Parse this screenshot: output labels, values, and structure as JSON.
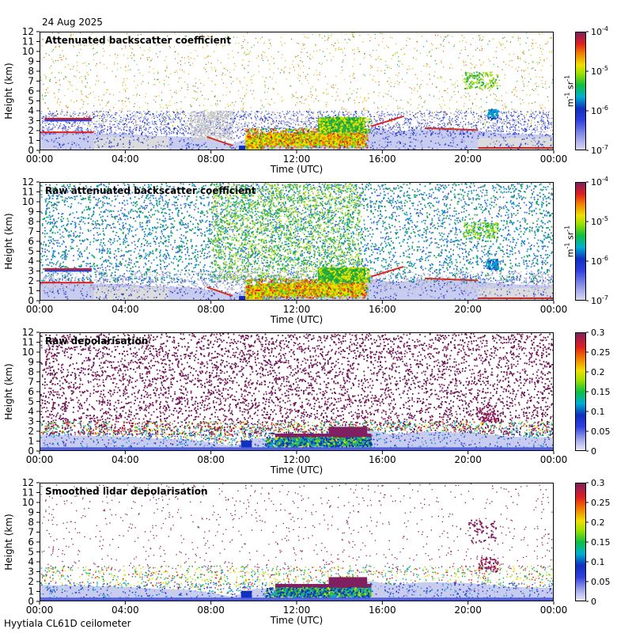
{
  "header": {
    "date": "24 Aug 2025"
  },
  "footer": {
    "site": "Hyytiala CL61D ceilometer"
  },
  "chart_data": [
    {
      "type": "heatmap",
      "title": "Attenuated backscatter coefficient",
      "xlabel": "Time (UTC)",
      "ylabel": "Height (km)",
      "x_ticks": [
        "00:00",
        "04:00",
        "08:00",
        "12:00",
        "16:00",
        "20:00",
        "00:00"
      ],
      "y_ticks": [
        "0",
        "1",
        "2",
        "3",
        "4",
        "5",
        "6",
        "7",
        "8",
        "9",
        "10",
        "11",
        "12"
      ],
      "ylim": [
        0,
        12
      ],
      "scale": "log",
      "colorbar_label": "m-1 sr-1",
      "colorbar_ticks": [
        "10-7",
        "10-6",
        "10-5",
        "10-4"
      ],
      "colorbar_range": [
        1e-07,
        0.0001
      ]
    },
    {
      "type": "heatmap",
      "title": "Raw attenuated backscatter coefficient",
      "xlabel": "Time (UTC)",
      "ylabel": "Height (km)",
      "x_ticks": [
        "00:00",
        "04:00",
        "08:00",
        "12:00",
        "16:00",
        "20:00",
        "00:00"
      ],
      "y_ticks": [
        "0",
        "1",
        "2",
        "3",
        "4",
        "5",
        "6",
        "7",
        "8",
        "9",
        "10",
        "11",
        "12"
      ],
      "ylim": [
        0,
        12
      ],
      "scale": "log",
      "colorbar_label": "m-1 sr-1",
      "colorbar_ticks": [
        "10-7",
        "10-6",
        "10-5",
        "10-4"
      ],
      "colorbar_range": [
        1e-07,
        0.0001
      ]
    },
    {
      "type": "heatmap",
      "title": "Raw depolarisation",
      "xlabel": "Time (UTC)",
      "ylabel": "Height (km)",
      "x_ticks": [
        "00:00",
        "04:00",
        "08:00",
        "12:00",
        "16:00",
        "20:00",
        "00:00"
      ],
      "y_ticks": [
        "0",
        "1",
        "2",
        "3",
        "4",
        "5",
        "6",
        "7",
        "8",
        "9",
        "10",
        "11",
        "12"
      ],
      "ylim": [
        0,
        12
      ],
      "scale": "linear",
      "colorbar_ticks": [
        "0",
        "0.05",
        "0.1",
        "0.15",
        "0.2",
        "0.25",
        "0.3"
      ],
      "colorbar_range": [
        0,
        0.3
      ]
    },
    {
      "type": "heatmap",
      "title": "Smoothed lidar depolarisation",
      "xlabel": "Time (UTC)",
      "ylabel": "Height (km)",
      "x_ticks": [
        "00:00",
        "04:00",
        "08:00",
        "12:00",
        "16:00",
        "20:00",
        "00:00"
      ],
      "y_ticks": [
        "0",
        "1",
        "2",
        "3",
        "4",
        "5",
        "6",
        "7",
        "8",
        "9",
        "10",
        "11",
        "12"
      ],
      "ylim": [
        0,
        12
      ],
      "scale": "linear",
      "colorbar_ticks": [
        "0",
        "0.05",
        "0.1",
        "0.15",
        "0.2",
        "0.25",
        "0.3"
      ],
      "colorbar_range": [
        0,
        0.3
      ]
    }
  ]
}
